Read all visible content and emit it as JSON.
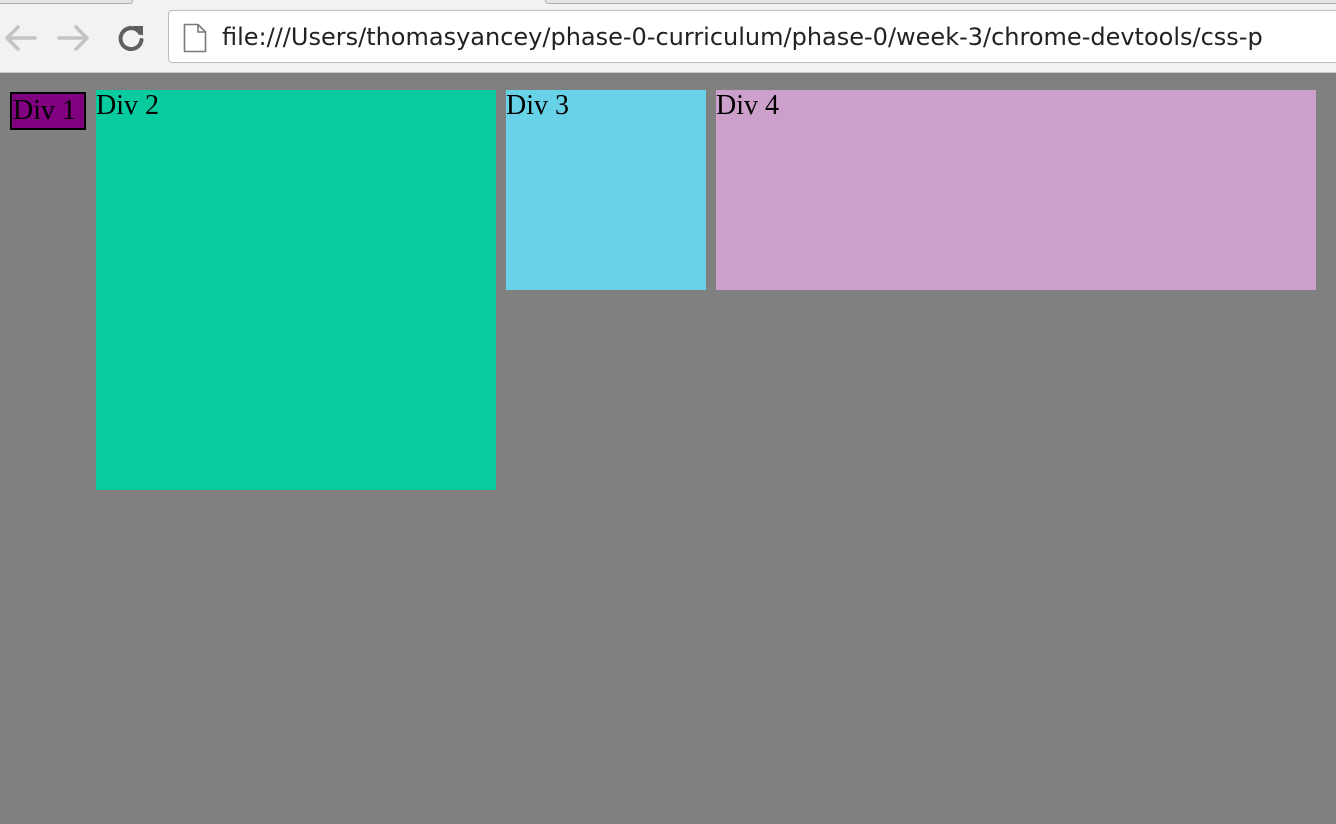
{
  "browser": {
    "address_bar": {
      "url": "file:///Users/thomasyancey/phase-0-curriculum/phase-0/week-3/chrome-devtools/css-p"
    },
    "icons": {
      "back": "back-arrow-icon",
      "forward": "forward-arrow-icon",
      "reload": "reload-icon",
      "page": "page-document-icon"
    }
  },
  "page": {
    "background_color": "#808080",
    "divs": [
      {
        "label": "Div 1",
        "color": "#800080"
      },
      {
        "label": "Div 2",
        "color": "#08cc9f"
      },
      {
        "label": "Div 3",
        "color": "#68d2e8"
      },
      {
        "label": "Div 4",
        "color": "#cda0cc"
      }
    ]
  }
}
